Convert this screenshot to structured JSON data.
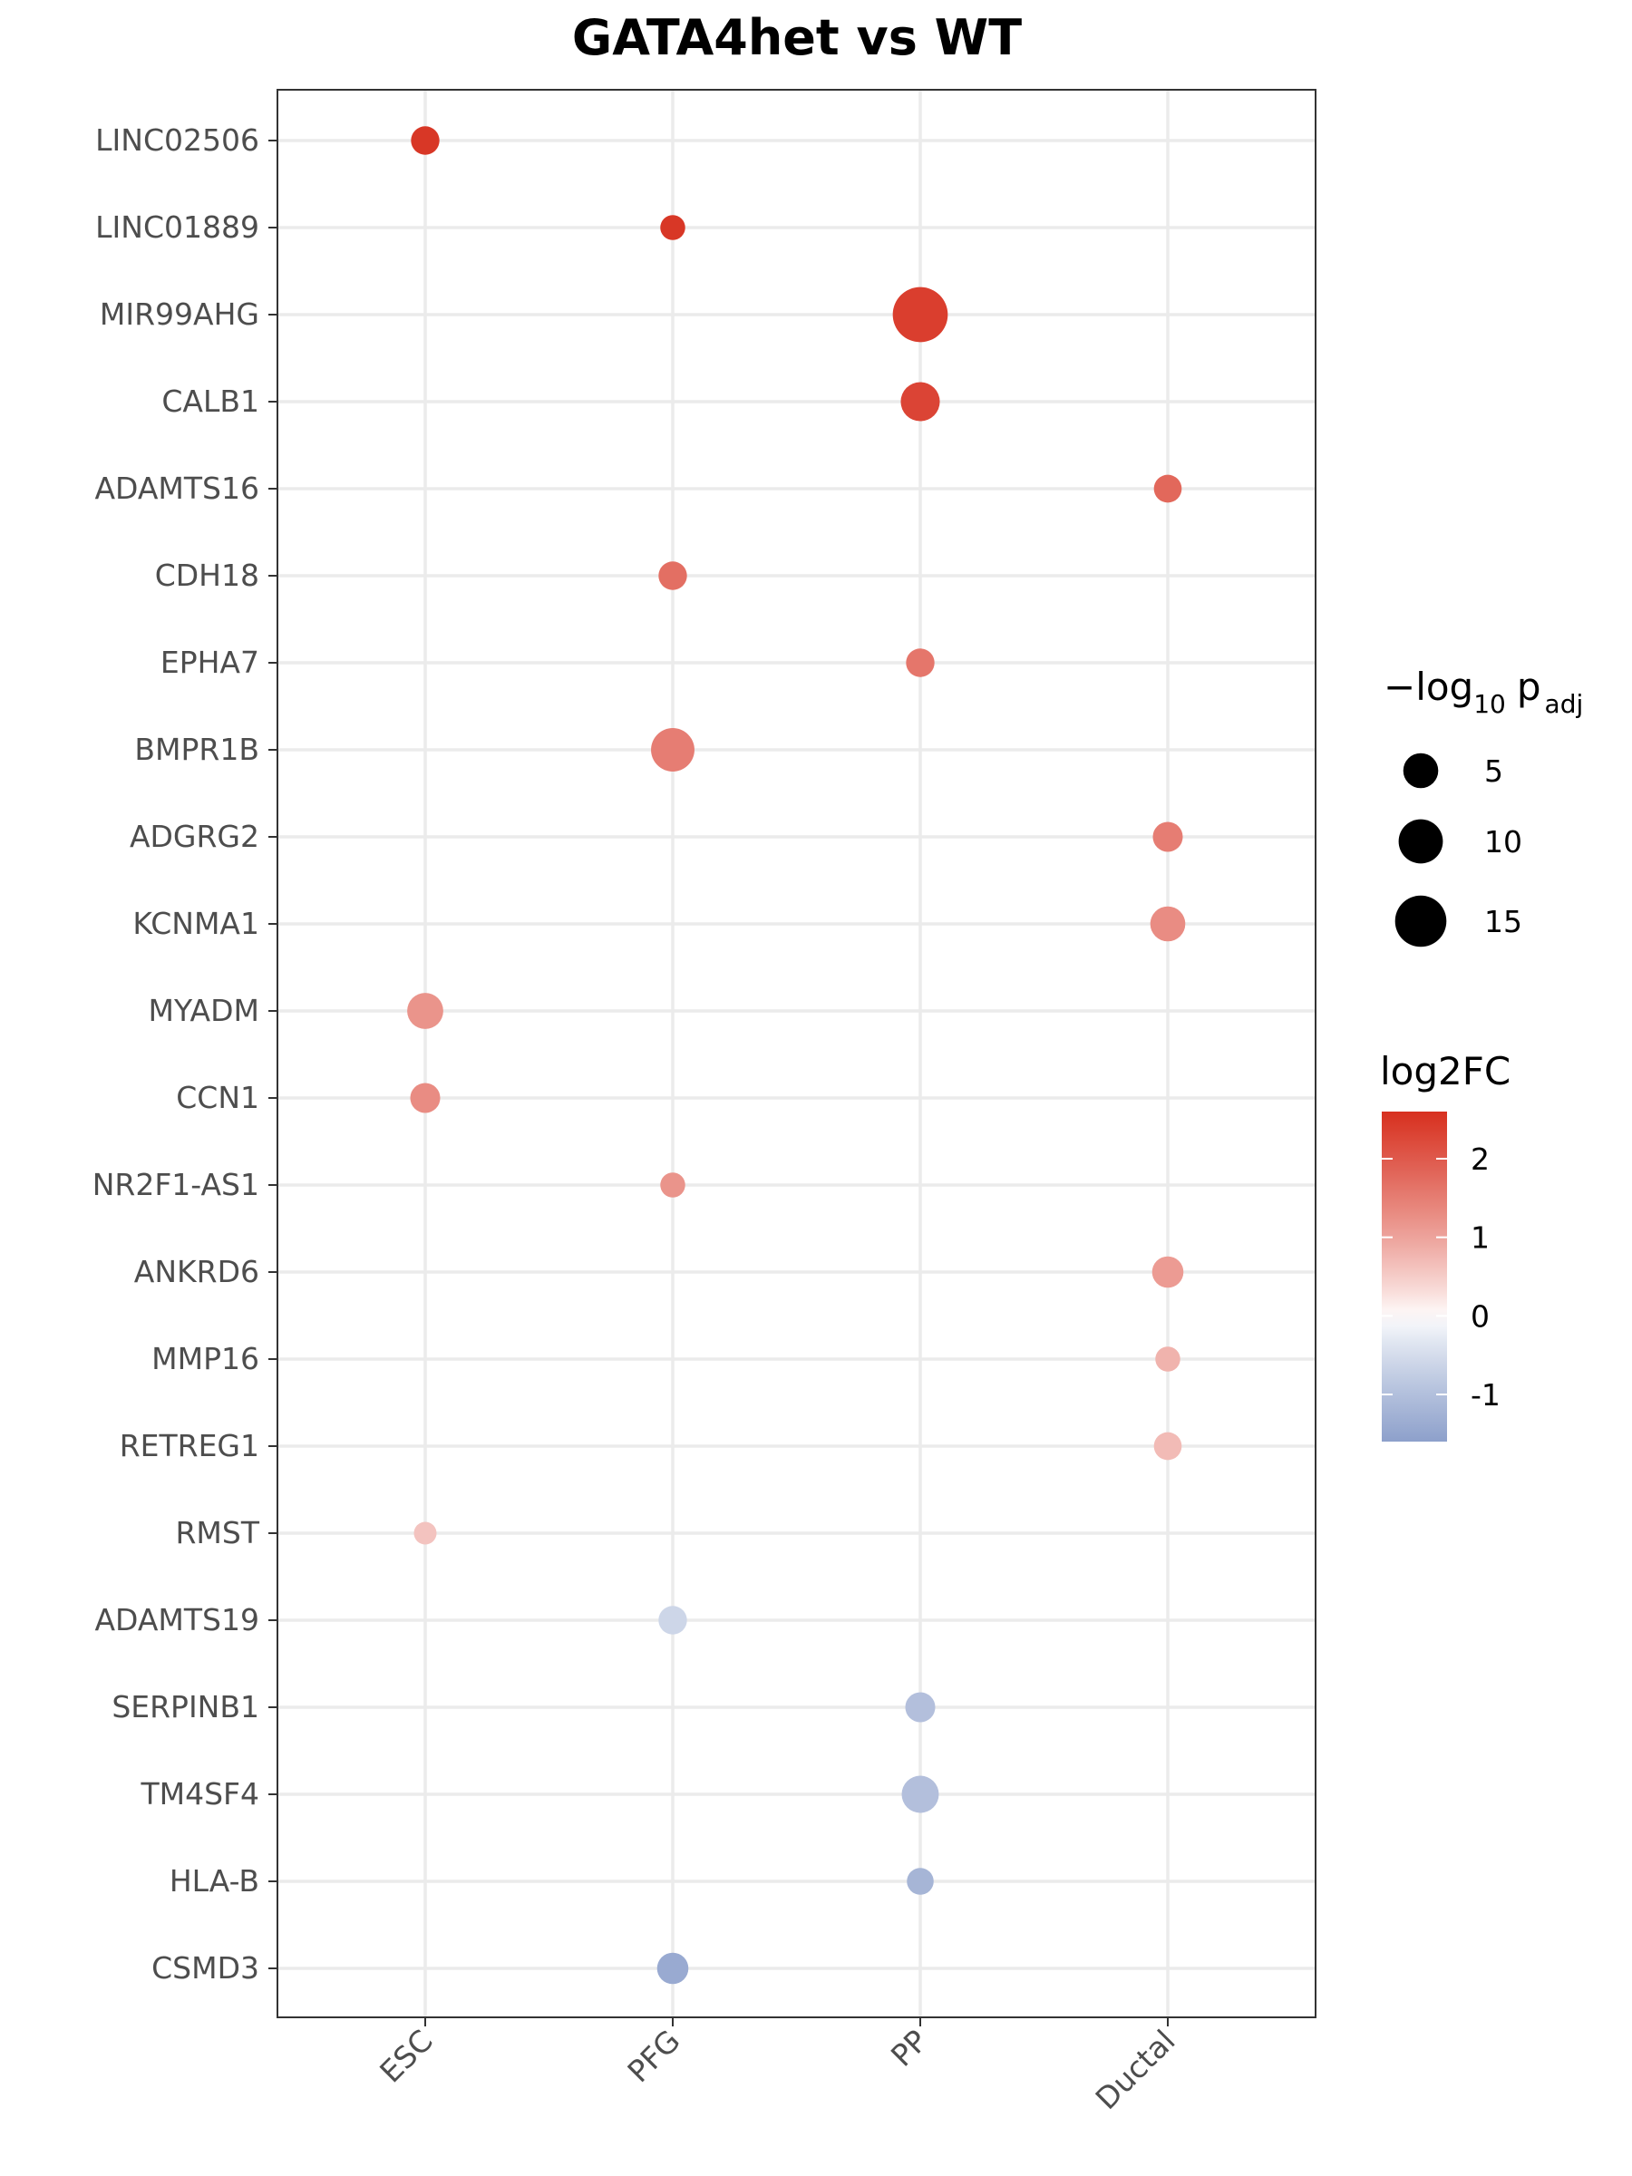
{
  "chart_data": {
    "type": "scatter",
    "title": "GATA4het vs WT",
    "xlabel": "",
    "ylabel": "",
    "x_categories": [
      "ESC",
      "PFG",
      "PP",
      "Ductal"
    ],
    "y_categories": [
      "LINC02506",
      "LINC01889",
      "MIR99AHG",
      "CALB1",
      "ADAMTS16",
      "CDH18",
      "EPHA7",
      "BMPR1B",
      "ADGRG2",
      "KCNMA1",
      "MYADM",
      "CCN1",
      "NR2F1-AS1",
      "ANKRD6",
      "MMP16",
      "RETREG1",
      "RMST",
      "ADAMTS19",
      "SERPINB1",
      "TM4SF4",
      "HLA-B",
      "CSMD3"
    ],
    "points": [
      {
        "gene": "LINC02506",
        "stage": "ESC",
        "log2FC": 2.5,
        "neglog10padj": 2.5
      },
      {
        "gene": "LINC01889",
        "stage": "PFG",
        "log2FC": 2.5,
        "neglog10padj": 1.5
      },
      {
        "gene": "MIR99AHG",
        "stage": "PP",
        "log2FC": 2.4,
        "neglog10padj": 18
      },
      {
        "gene": "CALB1",
        "stage": "PP",
        "log2FC": 2.3,
        "neglog10padj": 7
      },
      {
        "gene": "ADAMTS16",
        "stage": "Ductal",
        "log2FC": 1.8,
        "neglog10padj": 2.3
      },
      {
        "gene": "CDH18",
        "stage": "PFG",
        "log2FC": 1.7,
        "neglog10padj": 2.5
      },
      {
        "gene": "EPHA7",
        "stage": "PP",
        "log2FC": 1.6,
        "neglog10padj": 2.5
      },
      {
        "gene": "BMPR1B",
        "stage": "PFG",
        "log2FC": 1.5,
        "neglog10padj": 9.5
      },
      {
        "gene": "ADGRG2",
        "stage": "Ductal",
        "log2FC": 1.5,
        "neglog10padj": 3
      },
      {
        "gene": "KCNMA1",
        "stage": "Ductal",
        "log2FC": 1.3,
        "neglog10padj": 5
      },
      {
        "gene": "MYADM",
        "stage": "ESC",
        "log2FC": 1.2,
        "neglog10padj": 5.5
      },
      {
        "gene": "CCN1",
        "stage": "ESC",
        "log2FC": 1.3,
        "neglog10padj": 3
      },
      {
        "gene": "NR2F1-AS1",
        "stage": "PFG",
        "log2FC": 1.2,
        "neglog10padj": 1.5
      },
      {
        "gene": "ANKRD6",
        "stage": "Ductal",
        "log2FC": 1.1,
        "neglog10padj": 3.5
      },
      {
        "gene": "MMP16",
        "stage": "Ductal",
        "log2FC": 0.8,
        "neglog10padj": 1.5
      },
      {
        "gene": "RETREG1",
        "stage": "Ductal",
        "log2FC": 0.7,
        "neglog10padj": 2.3
      },
      {
        "gene": "RMST",
        "stage": "ESC",
        "log2FC": 0.6,
        "neglog10padj": 1
      },
      {
        "gene": "ADAMTS19",
        "stage": "PFG",
        "log2FC": -0.6,
        "neglog10padj": 2.5
      },
      {
        "gene": "SERPINB1",
        "stage": "PP",
        "log2FC": -1.0,
        "neglog10padj": 3
      },
      {
        "gene": "TM4SF4",
        "stage": "PP",
        "log2FC": -1.0,
        "neglog10padj": 6
      },
      {
        "gene": "HLA-B",
        "stage": "PP",
        "log2FC": -1.2,
        "neglog10padj": 2
      },
      {
        "gene": "CSMD3",
        "stage": "PFG",
        "log2FC": -1.4,
        "neglog10padj": 3.5
      }
    ],
    "size_legend": {
      "title_prefix": "−log",
      "title_sub": "10",
      "title_p": "p",
      "title_p_sub": "adj",
      "values": [
        5,
        10,
        15
      ]
    },
    "color_legend": {
      "title": "log2FC",
      "ticks": [
        2,
        1,
        0,
        -1
      ],
      "limits": [
        -1.6,
        2.6
      ],
      "low_color": "#8da0cb",
      "mid_color": "#ffffff",
      "high_color": "#d7301f"
    },
    "grid": true,
    "legend_position": "right"
  }
}
